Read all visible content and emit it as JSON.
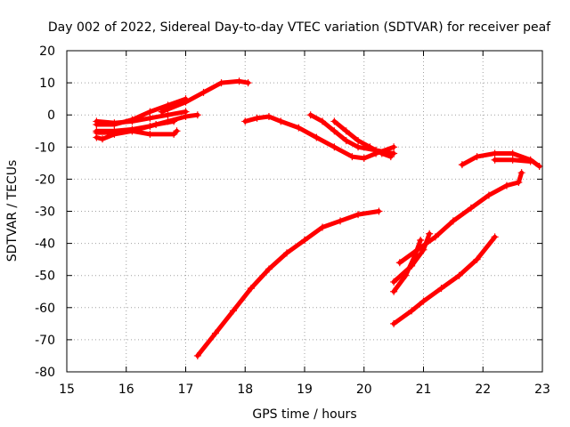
{
  "chart_data": {
    "type": "scatter",
    "title": "Day 002 of 2022, Sidereal Day-to-day VTEC variation (SDTVAR) for receiver peaf",
    "xlabel": "GPS time / hours",
    "ylabel": "SDTVAR / TECUs",
    "xlim": [
      15,
      23
    ],
    "ylim": [
      -80,
      20
    ],
    "xticks": [
      15,
      16,
      17,
      18,
      19,
      20,
      21,
      22,
      23
    ],
    "yticks": [
      -80,
      -70,
      -60,
      -50,
      -40,
      -30,
      -20,
      -10,
      0,
      10,
      20
    ],
    "grid": true,
    "series_color": "#ff0000",
    "series": [
      {
        "points": [
          [
            15.5,
            -2
          ],
          [
            15.8,
            -2.5
          ],
          [
            16.1,
            -2
          ],
          [
            16.4,
            -1
          ],
          [
            16.7,
            0
          ],
          [
            17.0,
            1
          ]
        ]
      },
      {
        "points": [
          [
            15.5,
            -3
          ],
          [
            15.8,
            -3
          ],
          [
            16.1,
            -1.5
          ],
          [
            16.4,
            1
          ],
          [
            16.7,
            3
          ],
          [
            17.0,
            5
          ]
        ]
      },
      {
        "points": [
          [
            15.5,
            -5
          ],
          [
            15.8,
            -5
          ],
          [
            16.1,
            -4.5
          ],
          [
            16.4,
            -3.5
          ],
          [
            16.7,
            -2
          ],
          [
            17.0,
            -0.5
          ],
          [
            17.2,
            0
          ]
        ]
      },
      {
        "points": [
          [
            15.5,
            -7
          ],
          [
            15.6,
            -7.5
          ],
          [
            15.8,
            -6
          ],
          [
            16.1,
            -5
          ],
          [
            16.5,
            -3
          ],
          [
            16.8,
            -2
          ]
        ]
      },
      {
        "points": [
          [
            15.5,
            -5.5
          ],
          [
            15.8,
            -5.5
          ],
          [
            16.1,
            -5
          ],
          [
            16.4,
            -6
          ],
          [
            16.8,
            -6
          ],
          [
            16.85,
            -5
          ]
        ]
      },
      {
        "points": [
          [
            16.6,
            1
          ],
          [
            17.0,
            4
          ],
          [
            17.3,
            7
          ],
          [
            17.6,
            10
          ],
          [
            17.9,
            10.5
          ],
          [
            18.05,
            10
          ]
        ]
      },
      {
        "points": [
          [
            17.2,
            -75
          ],
          [
            17.5,
            -68
          ],
          [
            17.8,
            -61
          ],
          [
            18.1,
            -54
          ],
          [
            18.4,
            -48
          ],
          [
            18.7,
            -43
          ],
          [
            19.0,
            -39
          ],
          [
            19.3,
            -35
          ],
          [
            19.6,
            -33
          ],
          [
            19.9,
            -31
          ],
          [
            20.25,
            -30
          ]
        ]
      },
      {
        "points": [
          [
            18.0,
            -2
          ],
          [
            18.2,
            -1
          ],
          [
            18.4,
            -0.5
          ],
          [
            18.6,
            -2
          ],
          [
            18.9,
            -4
          ],
          [
            19.2,
            -7
          ],
          [
            19.5,
            -10
          ],
          [
            19.8,
            -13
          ],
          [
            20.0,
            -13.5
          ],
          [
            20.2,
            -12
          ],
          [
            20.5,
            -10
          ]
        ]
      },
      {
        "points": [
          [
            19.1,
            0
          ],
          [
            19.3,
            -2
          ],
          [
            19.5,
            -5
          ],
          [
            19.7,
            -8
          ],
          [
            19.9,
            -10
          ],
          [
            20.2,
            -11
          ],
          [
            20.5,
            -12
          ]
        ]
      },
      {
        "points": [
          [
            19.5,
            -2
          ],
          [
            19.7,
            -5
          ],
          [
            19.9,
            -8
          ],
          [
            20.1,
            -10
          ],
          [
            20.3,
            -12
          ],
          [
            20.45,
            -13
          ]
        ]
      },
      {
        "points": [
          [
            20.5,
            -65
          ],
          [
            20.8,
            -61
          ],
          [
            21.0,
            -58
          ],
          [
            21.3,
            -54
          ],
          [
            21.6,
            -50
          ],
          [
            21.9,
            -45
          ],
          [
            22.2,
            -38
          ]
        ]
      },
      {
        "points": [
          [
            20.5,
            -55
          ],
          [
            20.7,
            -50
          ],
          [
            20.85,
            -44
          ],
          [
            20.95,
            -39
          ]
        ]
      },
      {
        "points": [
          [
            20.5,
            -52
          ],
          [
            20.8,
            -47
          ],
          [
            21.0,
            -42
          ],
          [
            21.1,
            -37
          ]
        ]
      },
      {
        "points": [
          [
            20.6,
            -46
          ],
          [
            20.9,
            -42
          ],
          [
            21.2,
            -38
          ],
          [
            21.5,
            -33
          ],
          [
            21.8,
            -29
          ],
          [
            22.1,
            -25
          ],
          [
            22.4,
            -22
          ],
          [
            22.6,
            -21
          ],
          [
            22.65,
            -18
          ]
        ]
      },
      {
        "points": [
          [
            21.65,
            -15.5
          ],
          [
            21.9,
            -13
          ],
          [
            22.2,
            -12
          ],
          [
            22.5,
            -12
          ],
          [
            22.8,
            -14
          ],
          [
            22.95,
            -16
          ]
        ]
      },
      {
        "points": [
          [
            22.2,
            -14
          ],
          [
            22.5,
            -14
          ],
          [
            22.8,
            -14.5
          ]
        ]
      }
    ]
  }
}
